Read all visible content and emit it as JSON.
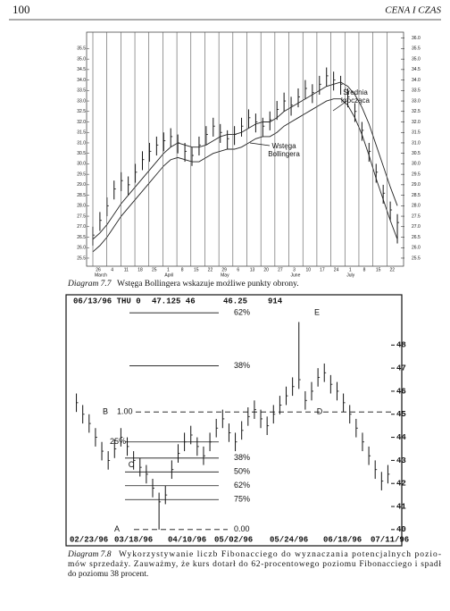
{
  "header": {
    "page": "100",
    "running_head": "CENA I CZAS"
  },
  "chart_data": [
    {
      "type": "ohlc",
      "ylim": [
        25.2,
        36.2
      ],
      "yticks": [
        25.5,
        {
          "value": 26,
          "label": "26.0"
        },
        26.5,
        {
          "value": 27,
          "label": "27.0"
        },
        27.5,
        {
          "value": 28,
          "label": "28.0"
        },
        28.5,
        {
          "value": 29,
          "label": "29.0"
        },
        29.5,
        {
          "value": 30,
          "label": "30.0"
        },
        30.5,
        {
          "value": 31,
          "label": "31.0"
        },
        31.5,
        {
          "value": 32,
          "label": "32.0"
        },
        32.5,
        {
          "value": 33,
          "label": "33.0"
        },
        33.5,
        {
          "value": 34,
          "label": "34.0"
        },
        34.5,
        {
          "value": 35,
          "label": "35.0"
        },
        35.5
      ],
      "y2ticks": [
        25.5,
        {
          "value": 26,
          "label": "26.0"
        },
        26.5,
        {
          "value": 27,
          "label": "27.0"
        },
        27.5,
        {
          "value": 28,
          "label": "28.0"
        },
        28.5,
        {
          "value": 29,
          "label": "29.0"
        },
        29.5,
        {
          "value": 30,
          "label": "30.0"
        },
        30.5,
        {
          "value": 31,
          "label": "31.0"
        },
        31.5,
        {
          "value": 32,
          "label": "32.0"
        },
        32.5,
        {
          "value": 33,
          "label": "33.0"
        },
        33.5,
        {
          "value": 34,
          "label": "34.0"
        },
        34.5,
        {
          "value": 35,
          "label": "35.0"
        },
        35.5,
        {
          "value": 36,
          "label": "36.0"
        }
      ],
      "x_labels": [
        "26",
        "4",
        "11",
        "18",
        "25",
        "1",
        "8",
        "15",
        "22",
        "29",
        "6",
        "13",
        "20",
        "27",
        "3",
        "10",
        "17",
        "24",
        "1",
        "8",
        "15",
        "22"
      ],
      "months": [
        "March",
        "April",
        "May",
        "June",
        "July"
      ],
      "high": [
        27.0,
        27.7,
        28.4,
        29.2,
        29.6,
        29.4,
        30.0,
        30.6,
        31.0,
        31.3,
        31.5,
        31.7,
        31.4,
        31.0,
        30.8,
        31.3,
        31.8,
        32.2,
        31.9,
        31.6,
        31.8,
        32.2,
        32.6,
        32.4,
        32.2,
        32.5,
        33.0,
        33.4,
        33.2,
        33.6,
        34.0,
        33.8,
        34.2,
        34.6,
        34.4,
        34.2,
        33.6,
        32.9,
        32.0,
        31.0,
        30.0,
        29.0,
        28.2,
        27.6
      ],
      "low": [
        26.1,
        26.8,
        27.5,
        28.3,
        28.7,
        28.5,
        29.1,
        29.7,
        30.1,
        30.4,
        30.6,
        30.8,
        30.5,
        30.1,
        29.9,
        30.4,
        30.9,
        31.3,
        31.0,
        30.7,
        30.9,
        31.3,
        31.7,
        31.5,
        31.3,
        31.6,
        32.1,
        32.5,
        32.3,
        32.7,
        33.1,
        32.9,
        33.3,
        33.7,
        33.5,
        33.3,
        32.7,
        32.0,
        31.1,
        30.1,
        29.1,
        28.1,
        27.3,
        26.2
      ],
      "close": [
        26.6,
        27.3,
        28.0,
        28.8,
        29.2,
        29.0,
        29.6,
        30.2,
        30.6,
        30.9,
        31.1,
        31.3,
        31.0,
        30.6,
        30.4,
        30.9,
        31.4,
        31.8,
        31.5,
        31.2,
        31.4,
        31.8,
        32.2,
        32.0,
        31.8,
        32.1,
        32.6,
        33.0,
        32.8,
        33.2,
        33.6,
        33.4,
        33.8,
        34.2,
        34.0,
        33.8,
        33.2,
        32.5,
        31.6,
        30.6,
        29.6,
        28.6,
        27.8,
        27.2
      ],
      "lines": [
        {
          "values": [
            26.4,
            26.7,
            27.1,
            27.6,
            28.1,
            28.5,
            28.9,
            29.3,
            29.7,
            30.1,
            30.5,
            30.8,
            31.0,
            30.9,
            30.8,
            30.8,
            30.9,
            31.1,
            31.3,
            31.4,
            31.4,
            31.5,
            31.7,
            31.9,
            32.0,
            32.0,
            32.2,
            32.5,
            32.7,
            32.9,
            33.1,
            33.3,
            33.5,
            33.7,
            33.8,
            33.9,
            33.7,
            33.3,
            32.7,
            31.9,
            30.9,
            29.9,
            28.9,
            28.0
          ]
        },
        {
          "values": [
            25.8,
            26.1,
            26.5,
            27.0,
            27.5,
            27.9,
            28.3,
            28.7,
            29.1,
            29.5,
            29.9,
            30.2,
            30.3,
            30.2,
            30.1,
            30.1,
            30.3,
            30.5,
            30.6,
            30.7,
            30.7,
            30.8,
            31.0,
            31.2,
            31.3,
            31.3,
            31.5,
            31.8,
            32.0,
            32.2,
            32.4,
            32.6,
            32.8,
            33.0,
            33.1,
            33.1,
            32.8,
            32.2,
            31.4,
            30.4,
            29.3,
            28.3,
            27.3,
            26.4
          ]
        }
      ],
      "annotations": [
        [
          "Średnia",
          "krocząca"
        ],
        [
          "Wstęga",
          "Bollingera"
        ]
      ],
      "caption": {
        "label": "Diagram 7.7",
        "text": "Wstęga Bollingera wskazuje możliwe punkty obrony."
      }
    },
    {
      "type": "ohlc",
      "ylim": [
        39.8,
        49.6
      ],
      "header": [
        "06/13/96 THU 0",
        "47.125 46",
        "46.25",
        "914"
      ],
      "y2ticks": [
        40,
        41,
        42,
        43,
        44,
        45,
        46,
        47,
        48
      ],
      "x_labels": [
        "02/23/96",
        "03/18/96",
        "04/10/96",
        "05/02/96",
        "05/24/96",
        "06/18/96",
        "07/11/96"
      ],
      "points": [
        "A",
        "B",
        "C",
        "D",
        "E"
      ],
      "levels": [
        {
          "label": "62%",
          "value": 49.4,
          "dashed": false
        },
        {
          "label": "38%",
          "value": 47.1,
          "dashed": false
        },
        {
          "label": "1.00",
          "value": 45.1,
          "dashed": true
        },
        {
          "label": "25%",
          "value": 43.8,
          "dashed": false
        },
        {
          "label": "38%",
          "value": 43.1,
          "dashed": false
        },
        {
          "label": "50%",
          "value": 42.5,
          "dashed": false
        },
        {
          "label": "62%",
          "value": 41.9,
          "dashed": false
        },
        {
          "label": "75%",
          "value": 41.3,
          "dashed": false
        },
        {
          "label": "0.00",
          "value": 40.0,
          "dashed": true
        }
      ],
      "high": [
        45.9,
        45.4,
        45.0,
        44.4,
        43.8,
        43.4,
        43.9,
        44.4,
        44.0,
        43.4,
        43.1,
        42.8,
        42.2,
        41.6,
        41.9,
        43.0,
        43.7,
        44.2,
        44.5,
        44.0,
        43.6,
        44.2,
        44.8,
        45.2,
        44.6,
        44.2,
        44.7,
        45.3,
        45.6,
        45.2,
        44.9,
        45.4,
        45.8,
        46.2,
        46.6,
        49.0,
        46.0,
        46.4,
        47.0,
        47.2,
        46.7,
        46.4,
        45.9,
        45.4,
        44.8,
        44.2,
        43.6,
        43.0,
        42.5,
        42.8
      ],
      "low": [
        45.1,
        44.6,
        44.2,
        43.6,
        43.0,
        42.6,
        43.1,
        43.6,
        43.2,
        42.6,
        42.3,
        42.0,
        41.4,
        40.0,
        41.1,
        42.2,
        42.9,
        43.4,
        43.7,
        43.2,
        42.8,
        43.4,
        44.0,
        44.4,
        43.8,
        43.4,
        43.9,
        44.5,
        44.8,
        44.4,
        44.1,
        44.6,
        45.0,
        45.4,
        45.8,
        46.1,
        45.2,
        45.6,
        46.2,
        46.4,
        45.9,
        45.6,
        45.1,
        44.6,
        44.0,
        43.4,
        42.8,
        42.2,
        41.7,
        42.0
      ],
      "close": [
        45.5,
        45.0,
        44.6,
        44.0,
        43.4,
        43.0,
        43.5,
        44.0,
        43.6,
        43.0,
        42.7,
        42.4,
        41.8,
        41.2,
        41.5,
        42.6,
        43.3,
        43.8,
        44.1,
        43.6,
        43.2,
        43.8,
        44.4,
        44.8,
        44.2,
        43.8,
        44.3,
        44.9,
        45.2,
        44.8,
        44.5,
        45.0,
        45.4,
        45.8,
        46.2,
        46.5,
        45.6,
        46.0,
        46.6,
        46.8,
        46.3,
        46.0,
        45.5,
        45.0,
        44.4,
        43.8,
        43.2,
        42.6,
        42.1,
        42.4
      ],
      "caption": {
        "label": "Diagram 7.8",
        "lines": [
          "Wykorzystywanie liczb Fibonacciego do wyznaczania potencjalnych pozio-",
          "mów sprzedaży. Zauważmy, że kurs dotarł do 62-procentowego poziomu Fibonacciego i spadł",
          "do poziomu 38 procent."
        ]
      }
    }
  ]
}
